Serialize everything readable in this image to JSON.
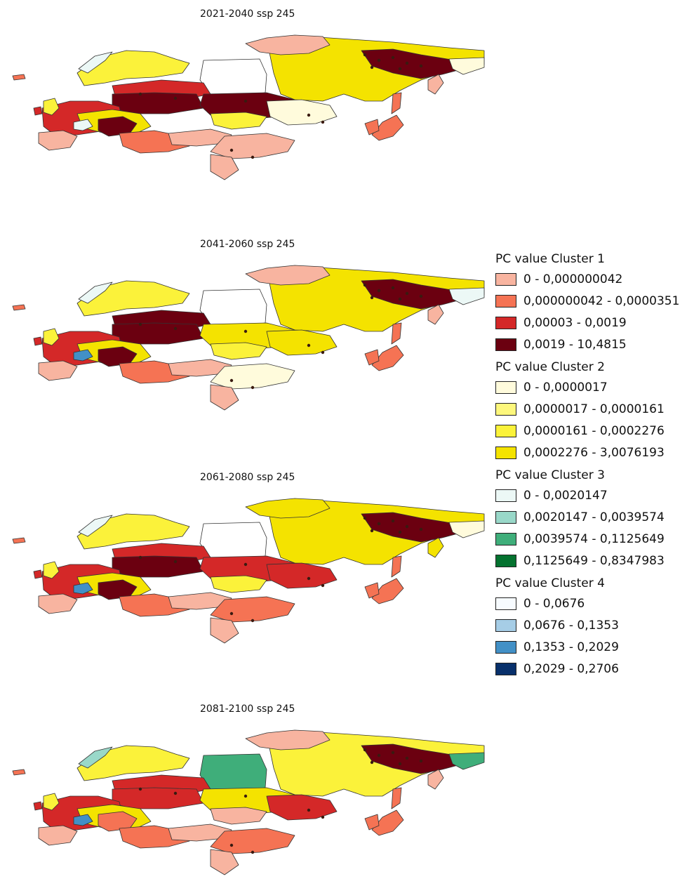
{
  "panels": [
    {
      "title": "2021-2040 ssp 245",
      "variant": 0
    },
    {
      "title": "2041-2060 ssp 245",
      "variant": 1
    },
    {
      "title": "2061-2080 ssp 245",
      "variant": 2
    },
    {
      "title": "2081-2100 ssp 245",
      "variant": 3
    }
  ],
  "legend": {
    "groups": [
      {
        "heading": "PC value Cluster 1",
        "items": [
          {
            "label": "0 - 0,000000042",
            "color": "#f8b4a0"
          },
          {
            "label": "0,000000042 - 0,0000351",
            "color": "#f57354"
          },
          {
            "label": "0,00003 - 0,0019",
            "color": "#d42828"
          },
          {
            "label": "0,0019 - 10,4815",
            "color": "#6b0010"
          }
        ]
      },
      {
        "heading": "PC value Cluster 2",
        "items": [
          {
            "label": "0 - 0,0000017",
            "color": "#fffbdc"
          },
          {
            "label": "0,0000017 - 0,0000161",
            "color": "#fdf77c"
          },
          {
            "label": "0,0000161 - 0,0002276",
            "color": "#fbf23a"
          },
          {
            "label": "0,0002276 - 3,0076193",
            "color": "#f4e300"
          }
        ]
      },
      {
        "heading": "PC value Cluster 3",
        "items": [
          {
            "label": "0 - 0,0020147",
            "color": "#ecf8f6"
          },
          {
            "label": "0,0020147 - 0,0039574",
            "color": "#99d8c9"
          },
          {
            "label": "0,0039574 - 0,1125649",
            "color": "#3fae7a"
          },
          {
            "label": "0,1125649 - 0,8347983",
            "color": "#04722f"
          }
        ]
      },
      {
        "heading": "PC value Cluster 4",
        "items": [
          {
            "label": "0 - 0,0676",
            "color": "#f7fbff"
          },
          {
            "label": "0,0676 - 0,1353",
            "color": "#a6cde6"
          },
          {
            "label": "0,1353 - 0,2029",
            "color": "#4290c6"
          },
          {
            "label": "0,2029 - 0,2706",
            "color": "#08306b"
          }
        ]
      }
    ]
  }
}
